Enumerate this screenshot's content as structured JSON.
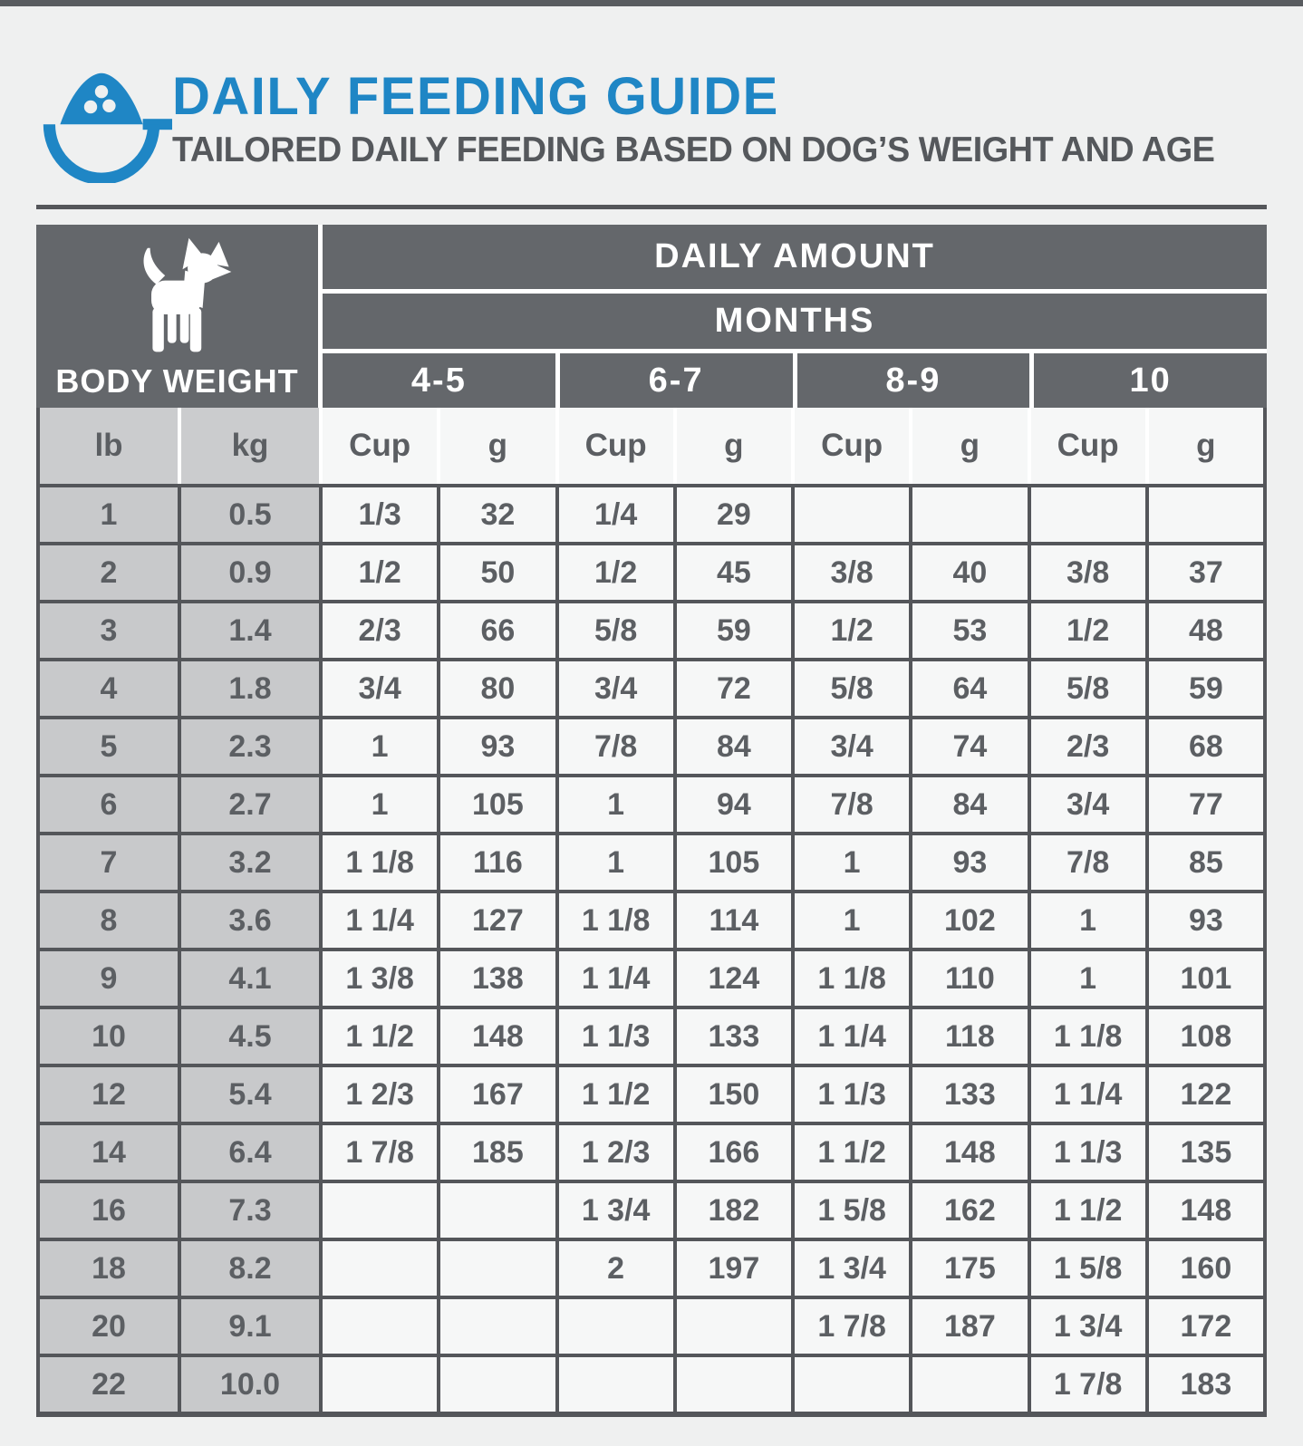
{
  "page": {
    "title": "DAILY FEEDING GUIDE",
    "subtitle": "TAILORED DAILY FEEDING BASED ON DOG’S WEIGHT AND AGE"
  },
  "colors": {
    "accent_blue": "#1f86c5",
    "header_dark_gray": "#64676b",
    "grid_line": "#54565a",
    "weight_cell_bg": "#c8c9cb",
    "data_cell_bg": "#f6f7f7",
    "page_bg": "#eff0f0",
    "text_gray": "#5c5f63"
  },
  "icons": {
    "bowl": "food-bowl-icon",
    "dog": "chihuahua-dog-icon"
  },
  "table": {
    "body_weight_label": "BODY WEIGHT",
    "daily_amount_label": "DAILY AMOUNT",
    "months_label": "MONTHS",
    "age_groups": [
      "4-5",
      "6-7",
      "8-9",
      "10"
    ],
    "weight_units": [
      "lb",
      "kg"
    ],
    "amount_units": [
      "Cup",
      "g"
    ]
  },
  "chart_data": {
    "type": "table",
    "title": "DAILY FEEDING GUIDE",
    "subtitle": "TAILORED DAILY FEEDING BASED ON DOG’S WEIGHT AND AGE",
    "column_groups": [
      "BODY WEIGHT",
      "DAILY AMOUNT / MONTHS 4-5",
      "DAILY AMOUNT / MONTHS 6-7",
      "DAILY AMOUNT / MONTHS 8-9",
      "DAILY AMOUNT / MONTHS 10"
    ],
    "columns": [
      "lb",
      "kg",
      "4-5 Cup",
      "4-5 g",
      "6-7 Cup",
      "6-7 g",
      "8-9 Cup",
      "8-9 g",
      "10 Cup",
      "10 g"
    ],
    "rows": [
      [
        "1",
        "0.5",
        "1/3",
        "32",
        "1/4",
        "29",
        "",
        "",
        "",
        ""
      ],
      [
        "2",
        "0.9",
        "1/2",
        "50",
        "1/2",
        "45",
        "3/8",
        "40",
        "3/8",
        "37"
      ],
      [
        "3",
        "1.4",
        "2/3",
        "66",
        "5/8",
        "59",
        "1/2",
        "53",
        "1/2",
        "48"
      ],
      [
        "4",
        "1.8",
        "3/4",
        "80",
        "3/4",
        "72",
        "5/8",
        "64",
        "5/8",
        "59"
      ],
      [
        "5",
        "2.3",
        "1",
        "93",
        "7/8",
        "84",
        "3/4",
        "74",
        "2/3",
        "68"
      ],
      [
        "6",
        "2.7",
        "1",
        "105",
        "1",
        "94",
        "7/8",
        "84",
        "3/4",
        "77"
      ],
      [
        "7",
        "3.2",
        "1 1/8",
        "116",
        "1",
        "105",
        "1",
        "93",
        "7/8",
        "85"
      ],
      [
        "8",
        "3.6",
        "1 1/4",
        "127",
        "1 1/8",
        "114",
        "1",
        "102",
        "1",
        "93"
      ],
      [
        "9",
        "4.1",
        "1 3/8",
        "138",
        "1 1/4",
        "124",
        "1 1/8",
        "110",
        "1",
        "101"
      ],
      [
        "10",
        "4.5",
        "1 1/2",
        "148",
        "1 1/3",
        "133",
        "1 1/4",
        "118",
        "1 1/8",
        "108"
      ],
      [
        "12",
        "5.4",
        "1 2/3",
        "167",
        "1 1/2",
        "150",
        "1 1/3",
        "133",
        "1 1/4",
        "122"
      ],
      [
        "14",
        "6.4",
        "1 7/8",
        "185",
        "1 2/3",
        "166",
        "1 1/2",
        "148",
        "1 1/3",
        "135"
      ],
      [
        "16",
        "7.3",
        "",
        "",
        "1 3/4",
        "182",
        "1 5/8",
        "162",
        "1 1/2",
        "148"
      ],
      [
        "18",
        "8.2",
        "",
        "",
        "2",
        "197",
        "1 3/4",
        "175",
        "1 5/8",
        "160"
      ],
      [
        "20",
        "9.1",
        "",
        "",
        "",
        "",
        "1 7/8",
        "187",
        "1 3/4",
        "172"
      ],
      [
        "22",
        "10.0",
        "",
        "",
        "",
        "",
        "",
        "",
        "1 7/8",
        "183"
      ]
    ]
  }
}
